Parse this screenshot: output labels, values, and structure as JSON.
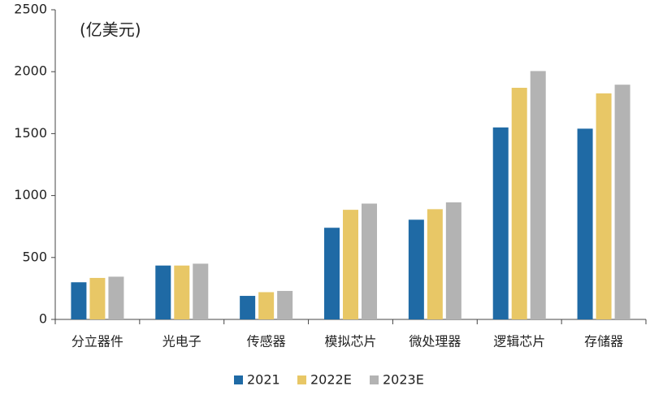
{
  "chart_data": {
    "type": "bar",
    "annotation": "(亿美元)",
    "categories": [
      "分立器件",
      "光电子",
      "传感器",
      "模拟芯片",
      "微处理器",
      "逻辑芯片",
      "存储器"
    ],
    "series": [
      {
        "name": "2021",
        "color": "#1f6aa5",
        "values": [
          300,
          435,
          190,
          740,
          805,
          1550,
          1540
        ]
      },
      {
        "name": "2022E",
        "color": "#e8c766",
        "values": [
          335,
          435,
          220,
          885,
          890,
          1870,
          1825
        ]
      },
      {
        "name": "2023E",
        "color": "#b3b3b3",
        "values": [
          345,
          450,
          230,
          935,
          945,
          2005,
          1895
        ]
      }
    ],
    "ylim": [
      0,
      2500
    ],
    "yticks": [
      0,
      500,
      1000,
      1500,
      2000,
      2500
    ],
    "grid": false,
    "legend": "bottom"
  }
}
